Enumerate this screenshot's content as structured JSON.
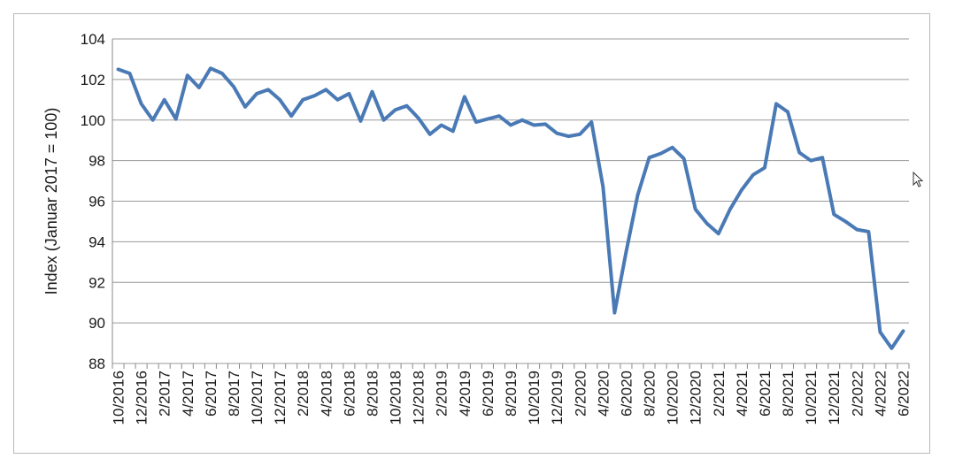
{
  "chart_data": {
    "type": "line",
    "title": "",
    "xlabel": "",
    "ylabel": "Index (Januar 2017 = 100)",
    "ylim": [
      88,
      104
    ],
    "yticks": [
      88,
      90,
      92,
      94,
      96,
      98,
      100,
      102,
      104
    ],
    "grid": true,
    "line_color": "#4a7ab5",
    "x_tick_labels": [
      "10/2016",
      "12/2016",
      "2/2017",
      "4/2017",
      "6/2017",
      "8/2017",
      "10/2017",
      "12/2017",
      "2/2018",
      "4/2018",
      "6/2018",
      "8/2018",
      "10/2018",
      "12/2018",
      "2/2019",
      "4/2019",
      "6/2019",
      "8/2019",
      "10/2019",
      "12/2019",
      "2/2020",
      "4/2020",
      "6/2020",
      "8/2020",
      "10/2020",
      "12/2020",
      "2/2021",
      "4/2021",
      "6/2021",
      "8/2021",
      "10/2021",
      "12/2021",
      "2/2022",
      "4/2022",
      "6/2022"
    ],
    "x": [
      "10/2016",
      "11/2016",
      "12/2016",
      "1/2017",
      "2/2017",
      "3/2017",
      "4/2017",
      "5/2017",
      "6/2017",
      "7/2017",
      "8/2017",
      "9/2017",
      "10/2017",
      "11/2017",
      "12/2017",
      "1/2018",
      "2/2018",
      "3/2018",
      "4/2018",
      "5/2018",
      "6/2018",
      "7/2018",
      "8/2018",
      "9/2018",
      "10/2018",
      "11/2018",
      "12/2018",
      "1/2019",
      "2/2019",
      "3/2019",
      "4/2019",
      "5/2019",
      "6/2019",
      "7/2019",
      "8/2019",
      "9/2019",
      "10/2019",
      "11/2019",
      "12/2019",
      "1/2020",
      "2/2020",
      "3/2020",
      "4/2020",
      "5/2020",
      "6/2020",
      "7/2020",
      "8/2020",
      "9/2020",
      "10/2020",
      "11/2020",
      "12/2020",
      "1/2021",
      "2/2021",
      "3/2021",
      "4/2021",
      "5/2021",
      "6/2021",
      "7/2021",
      "8/2021",
      "9/2021",
      "10/2021",
      "11/2021",
      "12/2021",
      "1/2022",
      "2/2022",
      "3/2022",
      "4/2022",
      "5/2022",
      "6/2022"
    ],
    "values": [
      102.5,
      102.3,
      100.8,
      100.0,
      101.0,
      100.05,
      102.2,
      101.6,
      102.55,
      102.3,
      101.65,
      100.65,
      101.3,
      101.5,
      101.0,
      100.2,
      101.0,
      101.2,
      101.5,
      101.0,
      101.3,
      99.95,
      101.4,
      100.0,
      100.5,
      100.7,
      100.1,
      99.3,
      99.75,
      99.45,
      101.15,
      99.9,
      100.05,
      100.2,
      99.75,
      100.0,
      99.75,
      99.8,
      99.35,
      99.2,
      99.3,
      99.9,
      96.7,
      90.5,
      93.5,
      96.3,
      98.15,
      98.35,
      98.65,
      98.1,
      95.6,
      94.9,
      94.4,
      95.6,
      96.55,
      97.3,
      97.65,
      100.8,
      100.4,
      98.4,
      98.0,
      98.15,
      95.35,
      95.0,
      94.6,
      94.5,
      89.55,
      88.75,
      89.6
    ]
  }
}
